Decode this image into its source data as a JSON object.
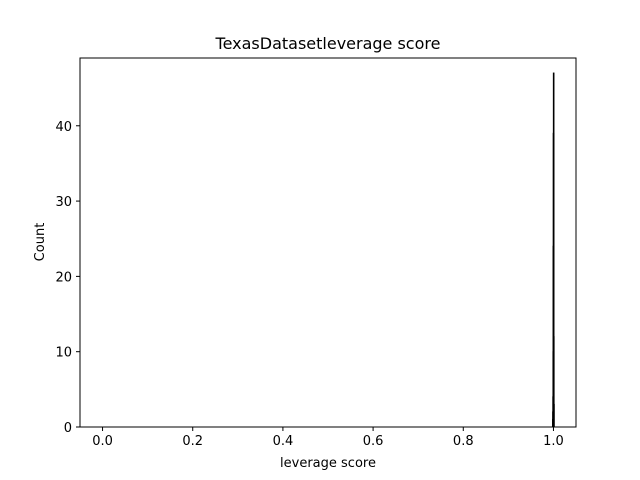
{
  "chart_data": {
    "type": "bar",
    "title": "TexasDatasetleverage score",
    "xlabel": "leverage score",
    "ylabel": "Count",
    "xlim": [
      -0.05,
      1.05
    ],
    "ylim": [
      0,
      49
    ],
    "xticks": [
      0.0,
      0.2,
      0.4,
      0.6,
      0.8,
      1.0
    ],
    "xtick_labels": [
      "0.0",
      "0.2",
      "0.4",
      "0.6",
      "0.8",
      "1.0"
    ],
    "yticks": [
      0,
      10,
      20,
      30,
      40
    ],
    "ytick_labels": [
      "0",
      "10",
      "20",
      "30",
      "40"
    ],
    "grid": false,
    "bins": [
      {
        "x0": 0.998,
        "x1": 0.9983,
        "count": 1
      },
      {
        "x0": 0.9983,
        "x1": 0.9986,
        "count": 2
      },
      {
        "x0": 0.9986,
        "x1": 0.9989,
        "count": 4
      },
      {
        "x0": 0.9989,
        "x1": 0.9992,
        "count": 10
      },
      {
        "x0": 0.9992,
        "x1": 0.9995,
        "count": 24
      },
      {
        "x0": 0.9995,
        "x1": 0.9998,
        "count": 39
      },
      {
        "x0": 0.9998,
        "x1": 1.0001,
        "count": 47
      },
      {
        "x0": 1.0001,
        "x1": 1.0004,
        "count": 12
      },
      {
        "x0": 1.0004,
        "x1": 1.0007,
        "count": 3
      }
    ]
  }
}
